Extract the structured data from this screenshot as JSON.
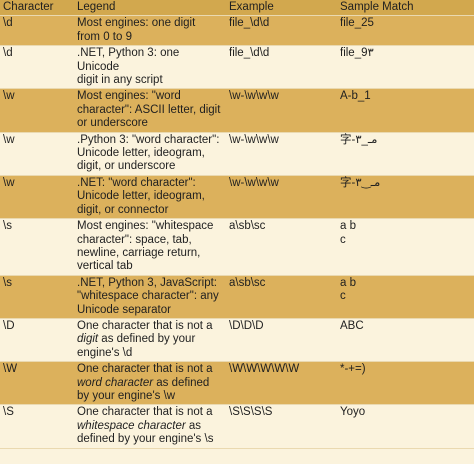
{
  "headers": [
    "Character",
    "Legend",
    "Example",
    "Sample Match"
  ],
  "rows": [
    {
      "char": "\\d",
      "legend": [
        "Most engines: one digit",
        "from 0 to 9"
      ],
      "example": "file_\\d\\d",
      "match": [
        "file_25"
      ],
      "h": 1
    },
    {
      "char": "\\d",
      "legend": [
        ".NET, Python 3: one Unicode",
        "digit in any script"
      ],
      "example": "file_\\d\\d",
      "match": [
        "file_9٣"
      ]
    },
    {
      "char": "\\w",
      "legend": [
        "Most engines: \"word",
        "character\": ASCII letter, digit",
        "or underscore"
      ],
      "example": "\\w-\\w\\w\\w",
      "match": [
        "A-b_1"
      ]
    },
    {
      "char": "\\w",
      "legend": [
        ".Python 3: \"word character\":",
        "Unicode letter, ideogram,",
        "digit, or underscore"
      ],
      "example": "\\w-\\w\\w\\w",
      "match": [
        "字-مـ_۳"
      ]
    },
    {
      "char": "\\w",
      "legend": [
        ".NET: \"word character\":",
        "Unicode letter, ideogram,",
        "digit, or connector"
      ],
      "example": "\\w-\\w\\w\\w",
      "match": [
        "字-مـ‿۳"
      ]
    },
    {
      "char": "\\s",
      "legend": [
        "Most engines: \"whitespace",
        "character\": space, tab,",
        "newline, carriage return,",
        "vertical tab"
      ],
      "example": "a\\sb\\sc",
      "match": [
        "a b",
        "c"
      ]
    },
    {
      "char": "\\s",
      "legend": [
        ".NET, Python 3, JavaScript:",
        "\"whitespace character\": any",
        "Unicode separator"
      ],
      "example": "a\\sb\\sc",
      "match": [
        "a b",
        "c"
      ]
    },
    {
      "char": "\\D",
      "legend_html": "One character that is not a<br><em>digit</em> as defined by your<br>engine's \\d",
      "legend": [
        "One character that is not a",
        "digit as defined by your",
        "engine's \\d"
      ],
      "example": "\\D\\D\\D",
      "match": [
        "ABC"
      ]
    },
    {
      "char": "\\W",
      "legend_html": "One character that is not a<br><em>word character</em> as defined<br>by your engine's \\w",
      "legend": [
        "One character that is not a",
        "word character as defined",
        "by your engine's \\w"
      ],
      "example": "\\W\\W\\W\\W\\W",
      "match": [
        "*-+=)"
      ]
    },
    {
      "char": "\\S",
      "legend_html": "One character that is not a<br><em>whitespace character</em> as<br>defined by your engine's \\s",
      "legend": [
        "One character that is not a",
        "whitespace character as",
        "defined by your engine's \\s"
      ],
      "example": "\\S\\S\\S\\S",
      "match": [
        "Yoyo"
      ]
    }
  ]
}
